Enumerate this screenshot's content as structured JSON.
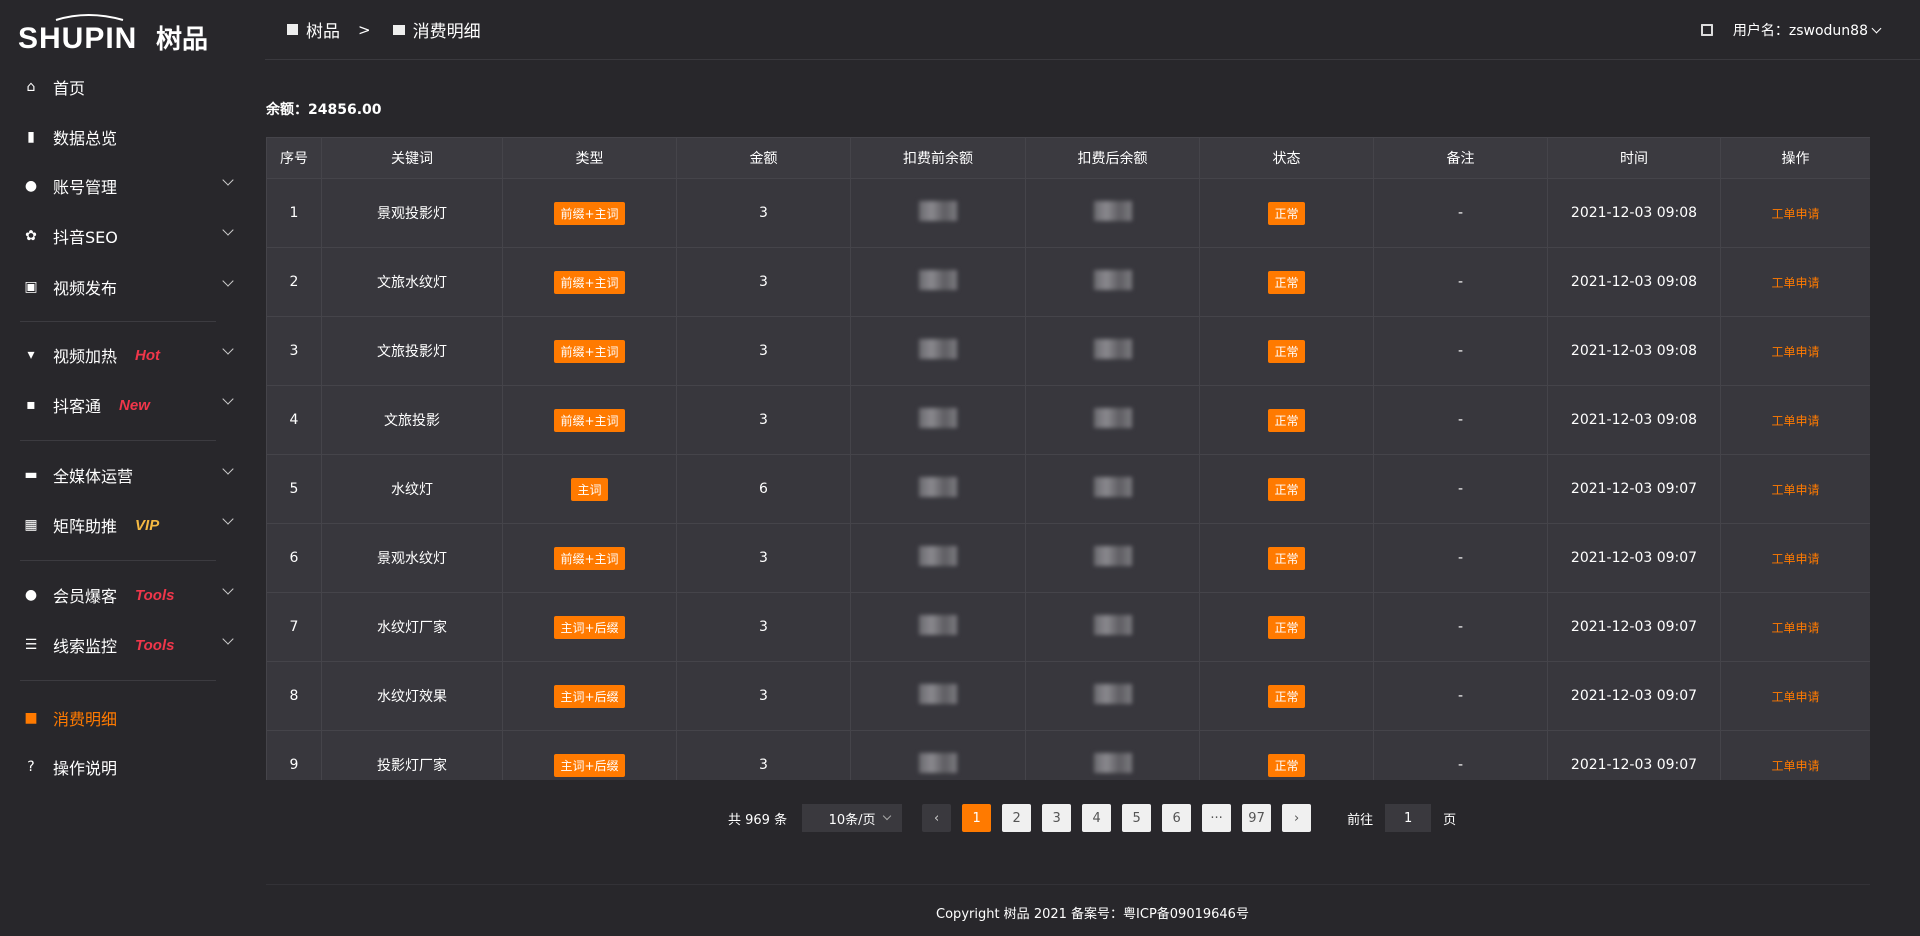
{
  "logo": {
    "text": "SHUPIN 树品"
  },
  "sidebar": {
    "items": [
      {
        "label": "首页",
        "icon": "home-icon"
      },
      {
        "label": "数据总览",
        "icon": "bar-chart-icon"
      },
      {
        "label": "账号管理",
        "icon": "user-icon",
        "expandable": true
      },
      {
        "label": "抖音SEO",
        "icon": "gear-icon",
        "expandable": true
      },
      {
        "label": "视频发布",
        "icon": "video-icon",
        "expandable": true
      },
      {
        "label": "视频加热",
        "icon": "fire-board-icon",
        "tag": "Hot",
        "tag_color": "#f0364a",
        "expandable": true
      },
      {
        "label": "抖客通",
        "icon": "chat-icon",
        "tag": "New",
        "tag_color": "#f0364a",
        "expandable": true
      },
      {
        "label": "全媒体运营",
        "icon": "monitor-icon",
        "expandable": true
      },
      {
        "label": "矩阵助推",
        "icon": "grid-icon",
        "tag": "VIP",
        "tag_color": "#f5b942",
        "expandable": true
      },
      {
        "label": "会员爆客",
        "icon": "user-icon",
        "tag": "Tools",
        "tag_color": "#f0364a",
        "expandable": true
      },
      {
        "label": "线索监控",
        "icon": "sliders-icon",
        "tag": "Tools",
        "tag_color": "#f0364a",
        "expandable": true
      },
      {
        "label": "消费明细",
        "icon": "wallet-icon",
        "active": true
      },
      {
        "label": "操作说明",
        "icon": "help-icon"
      }
    ]
  },
  "header": {
    "breadcrumb": [
      "树品",
      "消费明细"
    ],
    "breadcrumb_sep": ">",
    "user_label": "用户名：zswodun88"
  },
  "balance": {
    "label": "余额：",
    "value": "24856.00"
  },
  "table": {
    "columns": [
      "序号",
      "关键词",
      "类型",
      "金额",
      "扣费前余额",
      "扣费后余额",
      "状态",
      "备注",
      "时间",
      "操作"
    ],
    "rows": [
      {
        "no": "1",
        "keyword": "景观投影灯",
        "type": "前缀+主词",
        "amount": "3",
        "status": "正常",
        "remark": "-",
        "time": "2021-12-03 09:08",
        "action": "工单申请"
      },
      {
        "no": "2",
        "keyword": "文旅水纹灯",
        "type": "前缀+主词",
        "amount": "3",
        "status": "正常",
        "remark": "-",
        "time": "2021-12-03 09:08",
        "action": "工单申请"
      },
      {
        "no": "3",
        "keyword": "文旅投影灯",
        "type": "前缀+主词",
        "amount": "3",
        "status": "正常",
        "remark": "-",
        "time": "2021-12-03 09:08",
        "action": "工单申请"
      },
      {
        "no": "4",
        "keyword": "文旅投影",
        "type": "前缀+主词",
        "amount": "3",
        "status": "正常",
        "remark": "-",
        "time": "2021-12-03 09:08",
        "action": "工单申请"
      },
      {
        "no": "5",
        "keyword": "水纹灯",
        "type": "主词",
        "amount": "6",
        "status": "正常",
        "remark": "-",
        "time": "2021-12-03 09:07",
        "action": "工单申请"
      },
      {
        "no": "6",
        "keyword": "景观水纹灯",
        "type": "前缀+主词",
        "amount": "3",
        "status": "正常",
        "remark": "-",
        "time": "2021-12-03 09:07",
        "action": "工单申请"
      },
      {
        "no": "7",
        "keyword": "水纹灯厂家",
        "type": "主词+后缀",
        "amount": "3",
        "status": "正常",
        "remark": "-",
        "time": "2021-12-03 09:07",
        "action": "工单申请"
      },
      {
        "no": "8",
        "keyword": "水纹灯效果",
        "type": "主词+后缀",
        "amount": "3",
        "status": "正常",
        "remark": "-",
        "time": "2021-12-03 09:07",
        "action": "工单申请"
      },
      {
        "no": "9",
        "keyword": "投影灯厂家",
        "type": "主词+后缀",
        "amount": "3",
        "status": "正常",
        "remark": "-",
        "time": "2021-12-03 09:07",
        "action": "工单申请"
      }
    ]
  },
  "pagination": {
    "total": "共 969 条",
    "page_size": "10条/页",
    "pages": [
      "1",
      "2",
      "3",
      "4",
      "5",
      "6",
      "···",
      "97"
    ],
    "current": "1",
    "goto_label": "前往",
    "goto_value": "1",
    "page_suffix": "页"
  },
  "footer": {
    "text": "Copyright 树品 2021 备案号：粤ICP备09019646号"
  },
  "colors": {
    "accent": "#ff7a00",
    "background": "#28272b",
    "table_bg": "#38373d"
  }
}
